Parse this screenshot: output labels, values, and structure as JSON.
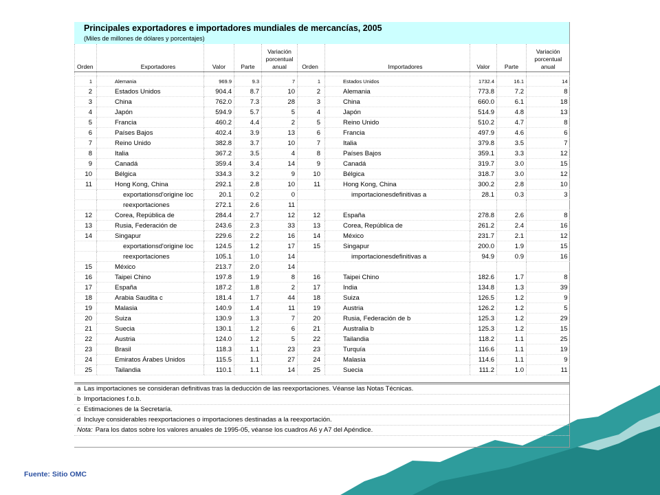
{
  "table": {
    "title": "Principales exportadores e importadores mundiales de mercancías, 2005",
    "subtitle": "(Miles de millones de dólares y porcentajes)",
    "header": [
      "Orden",
      "Exportadores",
      "Valor",
      "Parte",
      "Variación porcentual anual",
      "Orden",
      "Importadores",
      "Valor",
      "Parte",
      "Variación porcentual anual"
    ],
    "rows": [
      [
        "1",
        "Alemania",
        "969.9",
        "9.3",
        "7",
        "1",
        "Estados Unidos",
        "1732.4",
        "16.1",
        "14"
      ],
      [
        "2",
        "Estados Unidos",
        "904.4",
        "8.7",
        "10",
        "2",
        "Alemania",
        "773.8",
        "7.2",
        "8"
      ],
      [
        "3",
        "China",
        "762.0",
        "7.3",
        "28",
        "3",
        "China",
        "660.0",
        "6.1",
        "18"
      ],
      [
        "4",
        "Japón",
        "594.9",
        "5.7",
        "5",
        "4",
        "Japón",
        "514.9",
        "4.8",
        "13"
      ],
      [
        "5",
        "Francia",
        "460.2",
        "4.4",
        "2",
        "5",
        "Reino Unido",
        "510.2",
        "4.7",
        "8"
      ],
      [
        "6",
        "Países Bajos",
        "402.4",
        "3.9",
        "13",
        "6",
        "Francia",
        "497.9",
        "4.6",
        "6"
      ],
      [
        "7",
        "Reino Unido",
        "382.8",
        "3.7",
        "10",
        "7",
        "Italia",
        "379.8",
        "3.5",
        "7"
      ],
      [
        "8",
        "Italia",
        "367.2",
        "3.5",
        "4",
        "8",
        "Países Bajos",
        "359.1",
        "3.3",
        "12"
      ],
      [
        "9",
        "Canadá",
        "359.4",
        "3.4",
        "14",
        "9",
        "Canadá",
        "319.7",
        "3.0",
        "15"
      ],
      [
        "10",
        "Bélgica",
        "334.3",
        "3.2",
        "9",
        "10",
        "Bélgica",
        "318.7",
        "3.0",
        "12"
      ],
      [
        "11",
        "Hong Kong, China",
        "292.1",
        "2.8",
        "10",
        "11",
        "Hong Kong, China",
        "300.2",
        "2.8",
        "10"
      ],
      [
        null,
        "exportationsd'origine loc",
        "20.1",
        "0.2",
        "0",
        null,
        "importacionesdefinitivas  a",
        "28.1",
        "0.3",
        "3"
      ],
      [
        null,
        "reexportaciones",
        "272.1",
        "2.6",
        "11",
        null,
        null,
        null,
        null,
        null
      ],
      [
        "12",
        "Corea, República de",
        "284.4",
        "2.7",
        "12",
        "12",
        "España",
        "278.8",
        "2.6",
        "8"
      ],
      [
        "13",
        "Rusia, Federación de",
        "243.6",
        "2.3",
        "33",
        "13",
        "Corea, República de",
        "261.2",
        "2.4",
        "16"
      ],
      [
        "14",
        "Singapur",
        "229.6",
        "2.2",
        "16",
        "14",
        "México",
        "231.7",
        "2.1",
        "12"
      ],
      [
        null,
        "exportationsd'origine loc",
        "124.5",
        "1.2",
        "17",
        "15",
        "Singapur",
        "200.0",
        "1.9",
        "15"
      ],
      [
        null,
        "reexportaciones",
        "105.1",
        "1.0",
        "14",
        null,
        "importacionesdefinitivas  a",
        "94.9",
        "0.9",
        "16"
      ],
      [
        "15",
        "México",
        "213.7",
        "2.0",
        "14",
        null,
        null,
        null,
        null,
        null
      ],
      [
        "16",
        "Taipei Chino",
        "197.8",
        "1.9",
        "8",
        "16",
        "Taipei Chino",
        "182.6",
        "1.7",
        "8"
      ],
      [
        "17",
        "España",
        "187.2",
        "1.8",
        "2",
        "17",
        "India",
        "134.8",
        "1.3",
        "39"
      ],
      [
        "18",
        "Arabia Saudita  c",
        "181.4",
        "1.7",
        "44",
        "18",
        "Suiza",
        "126.5",
        "1.2",
        "9"
      ],
      [
        "19",
        "Malasia",
        "140.9",
        "1.4",
        "11",
        "19",
        "Austria",
        "126.2",
        "1.2",
        "5"
      ],
      [
        "20",
        "Suiza",
        "130.9",
        "1.3",
        "7",
        "20",
        "Rusia, Federación de  b",
        "125.3",
        "1.2",
        "29"
      ],
      [
        "21",
        "Suecia",
        "130.1",
        "1.2",
        "6",
        "21",
        "Australia  b",
        "125.3",
        "1.2",
        "15"
      ],
      [
        "22",
        "Austria",
        "124.0",
        "1.2",
        "5",
        "22",
        "Tailandia",
        "118.2",
        "1.1",
        "25"
      ],
      [
        "23",
        "Brasil",
        "118.3",
        "1.1",
        "23",
        "23",
        "Turquía",
        "116.6",
        "1.1",
        "19"
      ],
      [
        "24",
        "Emiratos Árabes Unidos",
        "115.5",
        "1.1",
        "27",
        "24",
        "Malasia",
        "114.6",
        "1.1",
        "9"
      ],
      [
        "25",
        "Tailandia",
        "110.1",
        "1.1",
        "14",
        "25",
        "Suecia",
        "111.2",
        "1.0",
        "11"
      ]
    ],
    "notes": [
      {
        "key": "a",
        "text": "Las importaciones se consideran definitivas tras la deducción de las reexportaciones. Véanse las Notas Técnicas."
      },
      {
        "key": "b",
        "text": "Importaciones f.o.b."
      },
      {
        "key": "c",
        "text": "Estimaciones de la Secretaría."
      },
      {
        "key": "d",
        "text": "Incluye considerables reexportaciones o importaciones destinadas a la reexportación."
      },
      {
        "key": "Nota:",
        "text": "Para los datos sobre los valores anuales de 1995-05, véanse los cuadros A6 y A7 del Apéndice."
      }
    ]
  },
  "footer": {
    "source": "Fuente:  Sitio OMC"
  }
}
